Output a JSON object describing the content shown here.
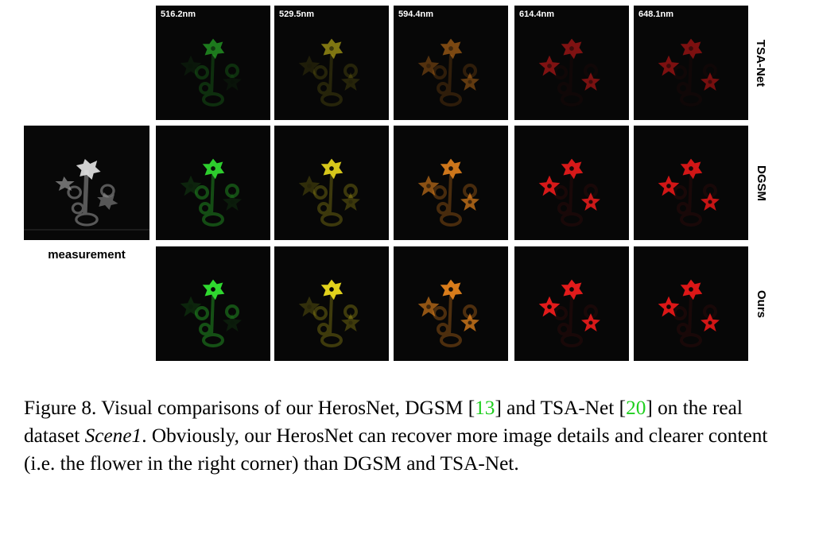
{
  "wavelengths": [
    "516.2nm",
    "529.5nm",
    "594.4nm",
    "614.4nm",
    "648.1nm"
  ],
  "rows": [
    "TSA-Net",
    "DGSM",
    "Ours"
  ],
  "measurement_label": "measurement",
  "colors": [
    "#2fd82f",
    "#e2d21c",
    "#f08a1e",
    "#ee1c1c",
    "#e81818"
  ],
  "caption": {
    "p1": "Figure 8.  Visual comparisons of our HerosNet, DGSM [",
    "ref1": "13",
    "p2": "] and TSA-Net [",
    "ref2": "20",
    "p3": "] on the real dataset ",
    "scene": "Scene1",
    "p4": ". Obviously, our HerosNet can recover more image details and clearer content (i.e. the flower in the right corner) than DGSM and TSA-Net."
  }
}
